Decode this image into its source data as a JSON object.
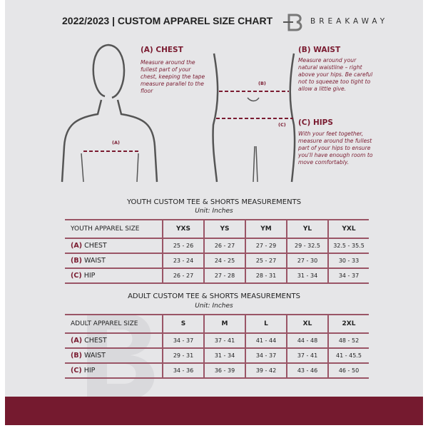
{
  "header": {
    "title": "2022/2023  |  CUSTOM APPAREL SIZE CHART",
    "brand": "BREAKAWAY"
  },
  "measurements": {
    "chest": {
      "title": "(A) CHEST",
      "desc": "Measure around the fullest part of your chest, keeping the tape measure parallel to the floor",
      "marker": "(A)"
    },
    "waist": {
      "title": "(B) WAIST",
      "desc": "Measure around your natural waistline – right above your hips. Be careful not to squeeze too tight to allow a little give.",
      "marker": "(B)"
    },
    "hips": {
      "title": "(C) HIPS",
      "desc": "With your feet together, measure around the fullest part of your hips to ensure you'll have enough room to move comfortably.",
      "marker": "(C)"
    }
  },
  "youth": {
    "title": "YOUTH CUSTOM TEE & SHORTS MEASUREMENTS",
    "unit": "Unit: Inches",
    "header": "YOUTH APPAREL SIZE",
    "sizes": [
      "YXS",
      "YS",
      "YM",
      "YL",
      "YXL"
    ],
    "rows": [
      {
        "code": "(A)",
        "name": "CHEST",
        "values": [
          "25 - 26",
          "26 - 27",
          "27 - 29",
          "29 - 32.5",
          "32.5 - 35.5"
        ]
      },
      {
        "code": "(B)",
        "name": "WAIST",
        "values": [
          "23 - 24",
          "24 - 25",
          "25 - 27",
          "27 - 30",
          "30 - 33"
        ]
      },
      {
        "code": "(C)",
        "name": "HIP",
        "values": [
          "26 - 27",
          "27 - 28",
          "28 - 31",
          "31 - 34",
          "34 - 37"
        ]
      }
    ]
  },
  "adult": {
    "title": "ADULT CUSTOM TEE & SHORTS MEASUREMENTS",
    "unit": "Unit: Inches",
    "header": "ADULT APPAREL SIZE",
    "sizes": [
      "S",
      "M",
      "L",
      "XL",
      "2XL"
    ],
    "rows": [
      {
        "code": "(A)",
        "name": "CHEST",
        "values": [
          "34 - 37",
          "37 - 41",
          "41 - 44",
          "44 - 48",
          "48 - 52"
        ]
      },
      {
        "code": "(B)",
        "name": "WAIST",
        "values": [
          "29 - 31",
          "31 - 34",
          "34 - 37",
          "37 - 41",
          "41 - 45.5"
        ]
      },
      {
        "code": "(C)",
        "name": "HIP",
        "values": [
          "34 - 36",
          "36 - 39",
          "39 - 42",
          "43 - 46",
          "46 - 50"
        ]
      }
    ]
  },
  "colors": {
    "accent": "#751a2f",
    "background": "#e6e6e8"
  }
}
